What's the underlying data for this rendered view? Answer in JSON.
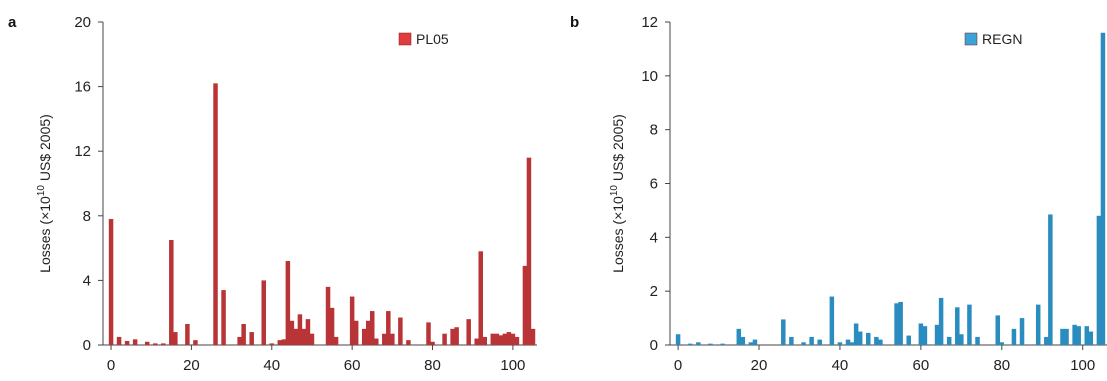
{
  "chart_data": [
    {
      "type": "bar",
      "panel_label": "a",
      "ylabel": "Losses (×10",
      "ylabel_sup": "10",
      "ylabel_rest": " US$ 2005)",
      "series": [
        {
          "name": "PL05",
          "color": "#b83436",
          "legend_color": "#e03c3e",
          "points": [
            [
              0,
              7.8
            ],
            [
              2,
              0.5
            ],
            [
              4,
              0.25
            ],
            [
              6,
              0.35
            ],
            [
              9,
              0.2
            ],
            [
              11,
              0.1
            ],
            [
              13,
              0.1
            ],
            [
              15,
              6.5
            ],
            [
              16,
              0.8
            ],
            [
              19,
              1.3
            ],
            [
              21,
              0.3
            ],
            [
              26,
              16.2
            ],
            [
              28,
              3.4
            ],
            [
              32,
              0.5
            ],
            [
              33,
              1.3
            ],
            [
              35,
              0.8
            ],
            [
              38,
              4.0
            ],
            [
              40,
              0.1
            ],
            [
              42,
              0.3
            ],
            [
              43,
              0.35
            ],
            [
              44,
              5.2
            ],
            [
              45,
              1.5
            ],
            [
              46,
              1.0
            ],
            [
              47,
              1.9
            ],
            [
              48,
              1.0
            ],
            [
              49,
              1.6
            ],
            [
              50,
              0.7
            ],
            [
              54,
              3.6
            ],
            [
              55,
              2.3
            ],
            [
              56,
              0.5
            ],
            [
              60,
              3.0
            ],
            [
              61,
              1.5
            ],
            [
              63,
              1.0
            ],
            [
              64,
              1.5
            ],
            [
              65,
              2.1
            ],
            [
              66,
              0.4
            ],
            [
              68,
              0.7
            ],
            [
              69,
              2.1
            ],
            [
              70,
              0.7
            ],
            [
              72,
              1.7
            ],
            [
              74,
              0.3
            ],
            [
              79,
              1.4
            ],
            [
              80,
              0.2
            ],
            [
              83,
              0.7
            ],
            [
              85,
              1.0
            ],
            [
              86,
              1.1
            ],
            [
              89,
              1.6
            ],
            [
              91,
              0.4
            ],
            [
              92,
              5.8
            ],
            [
              93,
              0.5
            ],
            [
              95,
              0.7
            ],
            [
              96,
              0.7
            ],
            [
              97,
              0.6
            ],
            [
              98,
              0.7
            ],
            [
              99,
              0.8
            ],
            [
              100,
              0.7
            ],
            [
              101,
              0.5
            ],
            [
              103,
              4.9
            ],
            [
              104,
              11.6
            ],
            [
              105,
              1.0
            ]
          ]
        }
      ],
      "xlim": [
        -2,
        106
      ],
      "ylim": [
        0,
        20
      ],
      "x_ticks": [
        0,
        20,
        40,
        60,
        80,
        100
      ],
      "y_ticks": [
        0,
        4,
        8,
        12,
        16,
        20
      ],
      "legend_position": "top-right",
      "grid": false
    },
    {
      "type": "bar",
      "panel_label": "b",
      "ylabel": "Losses (×10",
      "ylabel_sup": "10",
      "ylabel_rest": " US$ 2005)",
      "series": [
        {
          "name": "REGN",
          "color": "#2a8cbf",
          "legend_color": "#3aa4d8",
          "points": [
            [
              0,
              0.4
            ],
            [
              3,
              0.05
            ],
            [
              5,
              0.1
            ],
            [
              8,
              0.05
            ],
            [
              11,
              0.05
            ],
            [
              15,
              0.6
            ],
            [
              16,
              0.3
            ],
            [
              18,
              0.1
            ],
            [
              19,
              0.2
            ],
            [
              26,
              0.95
            ],
            [
              28,
              0.3
            ],
            [
              31,
              0.1
            ],
            [
              33,
              0.3
            ],
            [
              35,
              0.2
            ],
            [
              38,
              1.8
            ],
            [
              40,
              0.1
            ],
            [
              42,
              0.2
            ],
            [
              43,
              0.1
            ],
            [
              44,
              0.8
            ],
            [
              45,
              0.5
            ],
            [
              47,
              0.45
            ],
            [
              49,
              0.3
            ],
            [
              50,
              0.2
            ],
            [
              54,
              1.55
            ],
            [
              55,
              1.6
            ],
            [
              57,
              0.35
            ],
            [
              60,
              0.8
            ],
            [
              61,
              0.7
            ],
            [
              64,
              0.75
            ],
            [
              65,
              1.75
            ],
            [
              67,
              0.3
            ],
            [
              69,
              1.4
            ],
            [
              70,
              0.4
            ],
            [
              72,
              1.5
            ],
            [
              74,
              0.3
            ],
            [
              79,
              1.1
            ],
            [
              80,
              0.1
            ],
            [
              83,
              0.6
            ],
            [
              85,
              1.0
            ],
            [
              89,
              1.5
            ],
            [
              91,
              0.3
            ],
            [
              92,
              4.85
            ],
            [
              95,
              0.6
            ],
            [
              96,
              0.6
            ],
            [
              98,
              0.75
            ],
            [
              99,
              0.7
            ],
            [
              101,
              0.7
            ],
            [
              102,
              0.5
            ],
            [
              104,
              4.8
            ],
            [
              105,
              11.6
            ]
          ]
        }
      ],
      "xlim": [
        -2,
        106
      ],
      "ylim": [
        0,
        12
      ],
      "x_ticks": [
        0,
        20,
        40,
        60,
        80,
        100
      ],
      "y_ticks": [
        0,
        2,
        4,
        6,
        8,
        10,
        12
      ],
      "legend_position": "top-right",
      "grid": false
    }
  ]
}
